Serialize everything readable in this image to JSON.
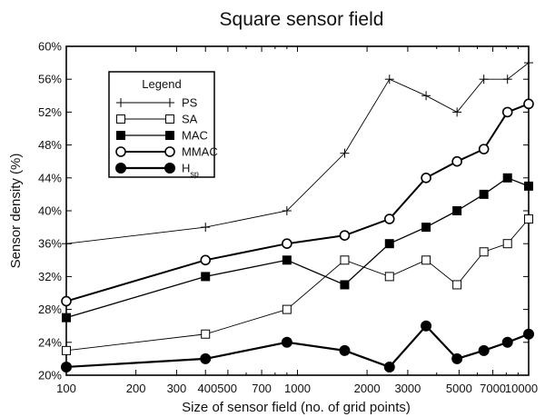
{
  "chart_data": {
    "type": "line",
    "title": "Square sensor field",
    "xlabel": "Size of sensor field (no. of grid points)",
    "ylabel": "Sensor density (%)",
    "x_scale": "log",
    "xlim": [
      100,
      10000
    ],
    "ylim": [
      20,
      60
    ],
    "x_ticks": [
      100,
      200,
      300,
      400,
      500,
      700,
      1000,
      2000,
      3000,
      5000,
      7000,
      10000
    ],
    "x_tick_labels": [
      "100",
      "200",
      "300",
      "400",
      "500",
      "700",
      "1000",
      "2000",
      "3000",
      "5000",
      "7000",
      "10000"
    ],
    "x_tick_label_rows": [
      [
        "100",
        "200",
        "300",
        "400500",
        "700",
        "1000",
        "2000",
        "3000",
        "5000",
        "7000",
        "10000"
      ]
    ],
    "y_ticks": [
      20,
      24,
      28,
      32,
      36,
      40,
      44,
      48,
      52,
      56,
      60
    ],
    "y_tick_labels": [
      "20%",
      "24%",
      "28%",
      "32%",
      "36%",
      "40%",
      "44%",
      "48%",
      "52%",
      "56%",
      "60%"
    ],
    "grid": false,
    "legend": {
      "title": "Legend",
      "position": "top-left"
    },
    "x": [
      100,
      400,
      900,
      1600,
      2500,
      3600,
      4900,
      6400,
      8100,
      10000
    ],
    "series": [
      {
        "name": "PS",
        "marker": "plus",
        "color": "#000000",
        "values": [
          36,
          38,
          40,
          47,
          56,
          54,
          52,
          56,
          56,
          58
        ]
      },
      {
        "name": "SA",
        "marker": "open-square",
        "color": "#000000",
        "values": [
          23,
          25,
          28,
          34,
          32,
          34,
          31,
          35,
          36,
          39
        ]
      },
      {
        "name": "MAC",
        "marker": "filled-square",
        "color": "#000000",
        "values": [
          27,
          32,
          34,
          31,
          36,
          38,
          40,
          42,
          44,
          43
        ]
      },
      {
        "name": "MMAC",
        "marker": "open-circle",
        "color": "#000000",
        "values": [
          29,
          34,
          36,
          37,
          39,
          44,
          46,
          47.5,
          52,
          53
        ]
      },
      {
        "name": "H",
        "name_subscript": "sp",
        "marker": "filled-circle",
        "color": "#000000",
        "values": [
          21,
          22,
          24,
          23,
          21,
          26,
          22,
          23,
          24,
          25
        ]
      }
    ]
  }
}
